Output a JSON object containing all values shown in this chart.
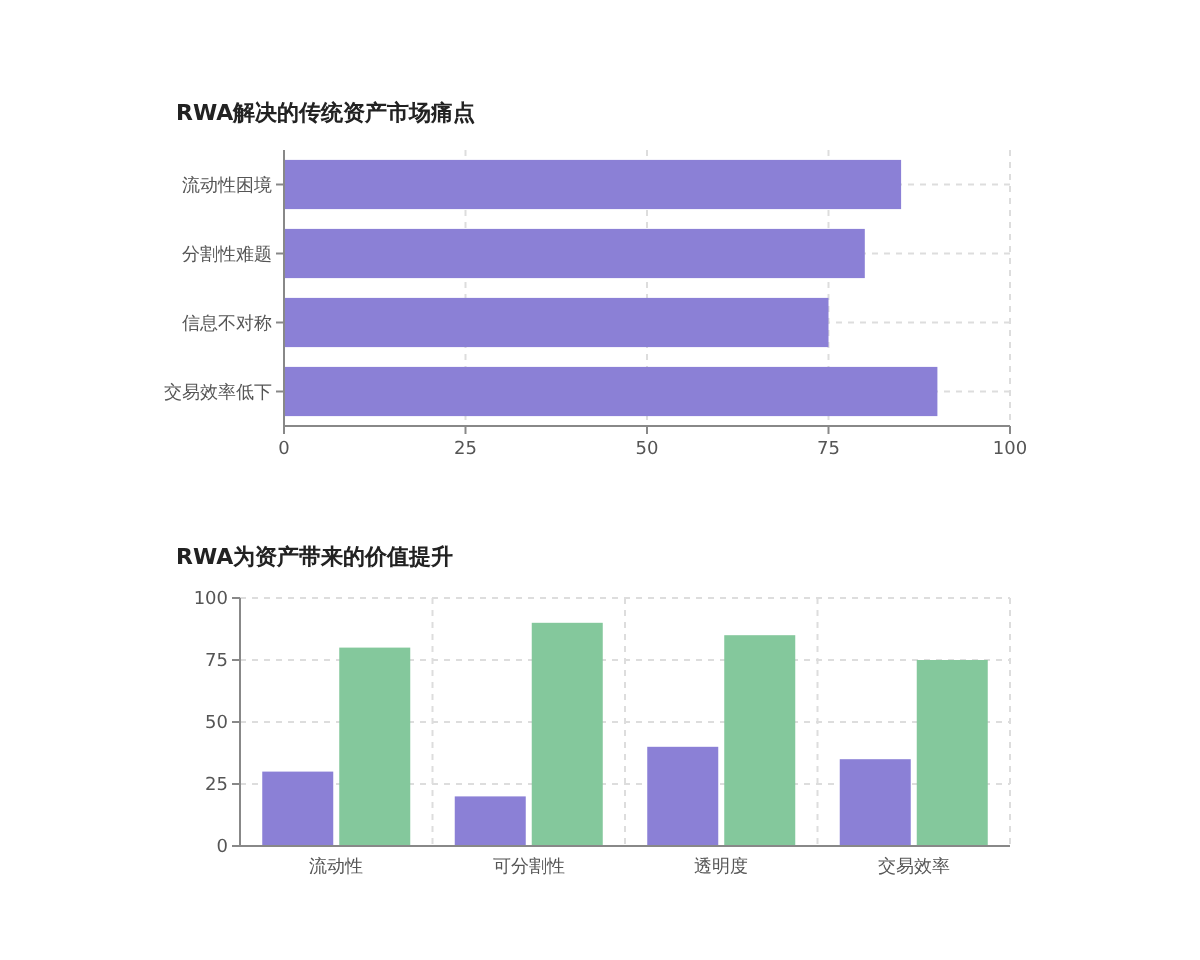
{
  "chart_data": [
    {
      "type": "bar",
      "orientation": "horizontal",
      "title": "RWA解决的传统资产市场痛点",
      "categories": [
        "流动性困境",
        "分割性难题",
        "信息不对称",
        "交易效率低下"
      ],
      "values": [
        85,
        80,
        75,
        90
      ],
      "color": "#8b80d6",
      "xlim": [
        0,
        100
      ],
      "xticks": [
        0,
        25,
        50,
        75,
        100
      ],
      "grid": true
    },
    {
      "type": "bar",
      "title": "RWA为资产带来的价值提升",
      "categories": [
        "流动性",
        "可分割性",
        "透明度",
        "交易效率"
      ],
      "series": [
        {
          "color": "#8b80d6",
          "values": [
            30,
            20,
            40,
            35
          ]
        },
        {
          "color": "#84c89c",
          "values": [
            80,
            90,
            85,
            75
          ]
        }
      ],
      "ylim": [
        0,
        100
      ],
      "yticks": [
        0,
        25,
        50,
        75,
        100
      ],
      "grid": true
    }
  ]
}
